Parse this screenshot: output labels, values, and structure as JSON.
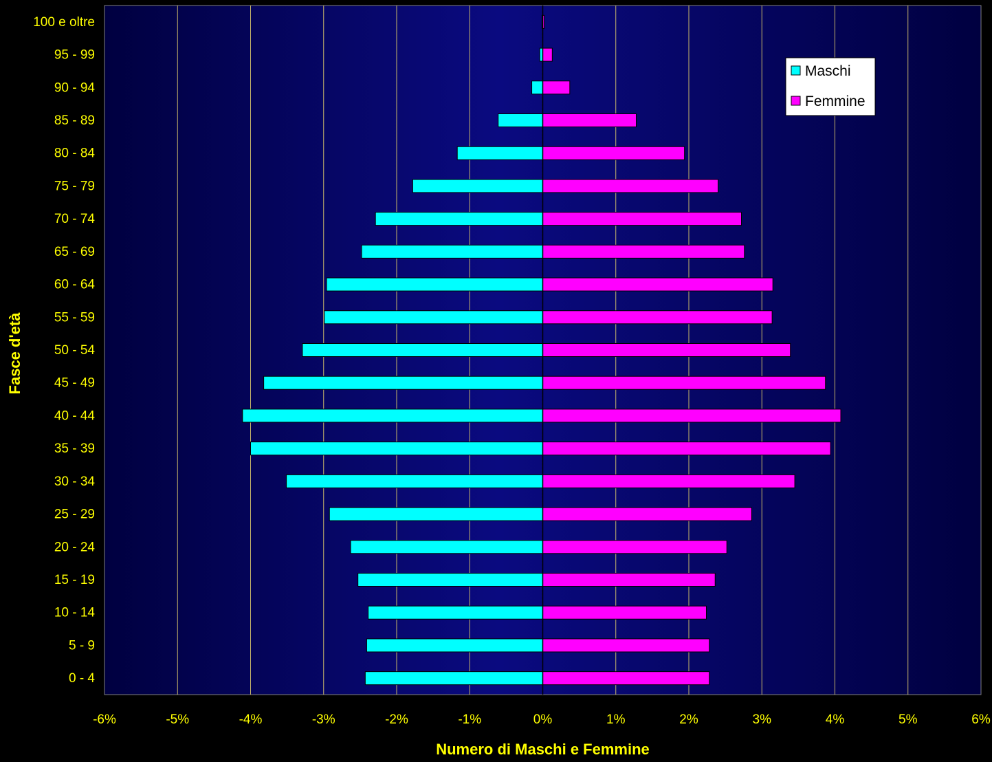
{
  "colors": {
    "page_background": "#000000",
    "plot_gradient_light": "#0a0a80",
    "plot_gradient_dark": "#000040",
    "gridline": "#c9b86a",
    "label_text": "#ffff00",
    "males": "#00ffff",
    "females": "#ff00ff"
  },
  "chart_data": {
    "type": "bar",
    "orientation": "horizontal",
    "ylabel": "Fasce d'età",
    "xlabel": "Numero di Maschi e Femmine",
    "categories": [
      "0 - 4",
      "5 - 9",
      "10 - 14",
      "15 - 19",
      "20 - 24",
      "25 - 29",
      "30 - 34",
      "35 - 39",
      "40 - 44",
      "45 - 49",
      "50 - 54",
      "55 - 59",
      "60 - 64",
      "65 - 69",
      "70 - 74",
      "75 - 79",
      "80 - 84",
      "85 - 89",
      "90 - 94",
      "95 - 99",
      "100 e oltre"
    ],
    "series": [
      {
        "name": "Maschi",
        "color": "#00ffff",
        "values": [
          -2.43,
          -2.41,
          -2.39,
          -2.53,
          -2.63,
          -2.92,
          -3.51,
          -4.0,
          -4.11,
          -3.82,
          -3.29,
          -2.99,
          -2.96,
          -2.48,
          -2.29,
          -1.78,
          -1.17,
          -0.61,
          -0.15,
          -0.04,
          -0.01
        ]
      },
      {
        "name": "Femmine",
        "color": "#ff00ff",
        "values": [
          2.28,
          2.28,
          2.24,
          2.36,
          2.52,
          2.86,
          3.45,
          3.94,
          4.08,
          3.87,
          3.39,
          3.14,
          3.15,
          2.76,
          2.72,
          2.4,
          1.94,
          1.28,
          0.37,
          0.13,
          0.02
        ]
      }
    ],
    "xlim": [
      -6,
      6
    ],
    "xticks": [
      -6,
      -5,
      -4,
      -3,
      -2,
      -1,
      0,
      1,
      2,
      3,
      4,
      5,
      6
    ],
    "xtick_labels": [
      "-6%",
      "-5%",
      "-4%",
      "-3%",
      "-2%",
      "-1%",
      "0%",
      "1%",
      "2%",
      "3%",
      "4%",
      "5%",
      "6%"
    ],
    "grid": "vertical",
    "legend_position": "top-right"
  }
}
